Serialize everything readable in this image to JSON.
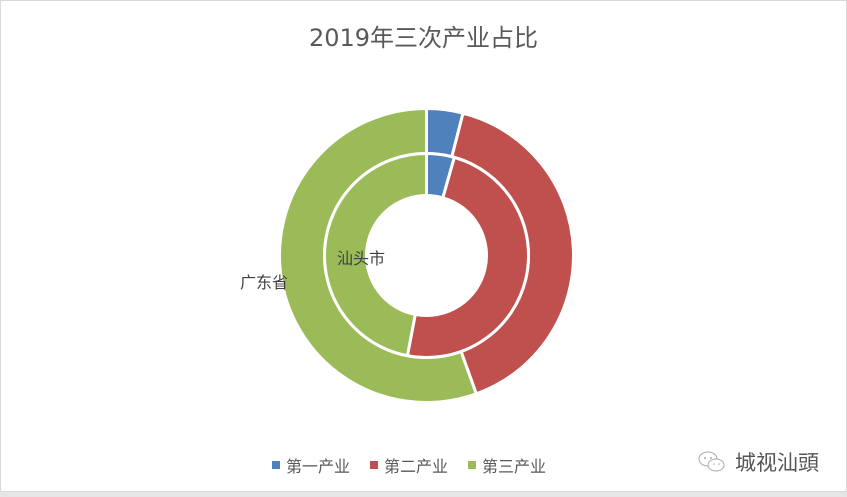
{
  "chart_data": {
    "type": "pie",
    "subtype": "doughnut",
    "title": "2019年三次产业占比",
    "categories": [
      "第一产业",
      "第二产业",
      "第三产业"
    ],
    "series": [
      {
        "name": "广东省",
        "ring": "outer",
        "values": [
          4.0,
          40.5,
          55.5
        ]
      },
      {
        "name": "汕头市",
        "ring": "inner",
        "values": [
          4.4,
          48.6,
          47.0
        ]
      }
    ],
    "colors": [
      "#4f81bd",
      "#c0504d",
      "#9bbb59"
    ],
    "legend_position": "bottom"
  },
  "title": "2019年三次产业占比",
  "labels": {
    "outer": "广东省",
    "inner": "汕头市"
  },
  "legend": [
    {
      "label": "第一产业",
      "color": "#4f81bd"
    },
    {
      "label": "第二产业",
      "color": "#c0504d"
    },
    {
      "label": "第三产业",
      "color": "#9bbb59"
    }
  ],
  "watermark": {
    "text": "城视汕頭",
    "icon": "wechat-icon"
  }
}
